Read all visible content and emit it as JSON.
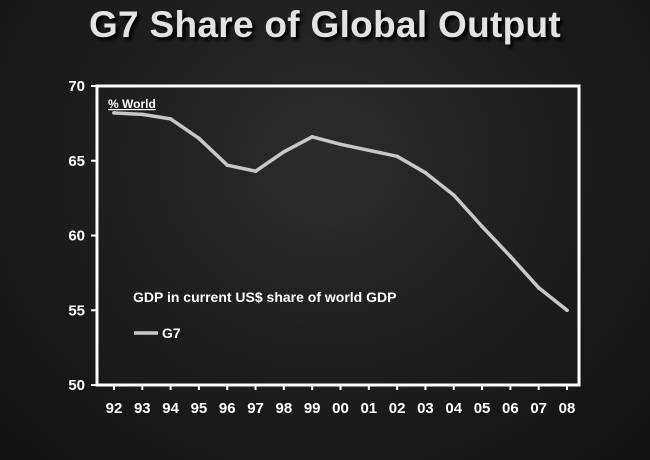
{
  "slide": {
    "title": "G7 Share of Global Output"
  },
  "chart_data": {
    "type": "line",
    "title": "G7 Share of Global Output",
    "ylabel": "% World",
    "xlabel": "",
    "categories": [
      "92",
      "93",
      "94",
      "95",
      "96",
      "97",
      "98",
      "99",
      "00",
      "01",
      "02",
      "03",
      "04",
      "05",
      "06",
      "07",
      "08"
    ],
    "ylim": [
      50,
      70
    ],
    "yticks": [
      50,
      55,
      60,
      65,
      70
    ],
    "series": [
      {
        "name": "G7",
        "values": [
          68.2,
          68.1,
          67.8,
          66.5,
          64.7,
          64.3,
          65.6,
          66.6,
          66.1,
          65.7,
          65.3,
          64.2,
          62.7,
          60.6,
          58.6,
          56.5,
          55.0
        ]
      }
    ],
    "annotation": "GDP in current US$ share of world GDP",
    "legend": "inside plot, left",
    "grid": false,
    "colors": {
      "line": "#c8c8c8",
      "plot_border": "#ffffff",
      "text": "#ffffff"
    }
  }
}
